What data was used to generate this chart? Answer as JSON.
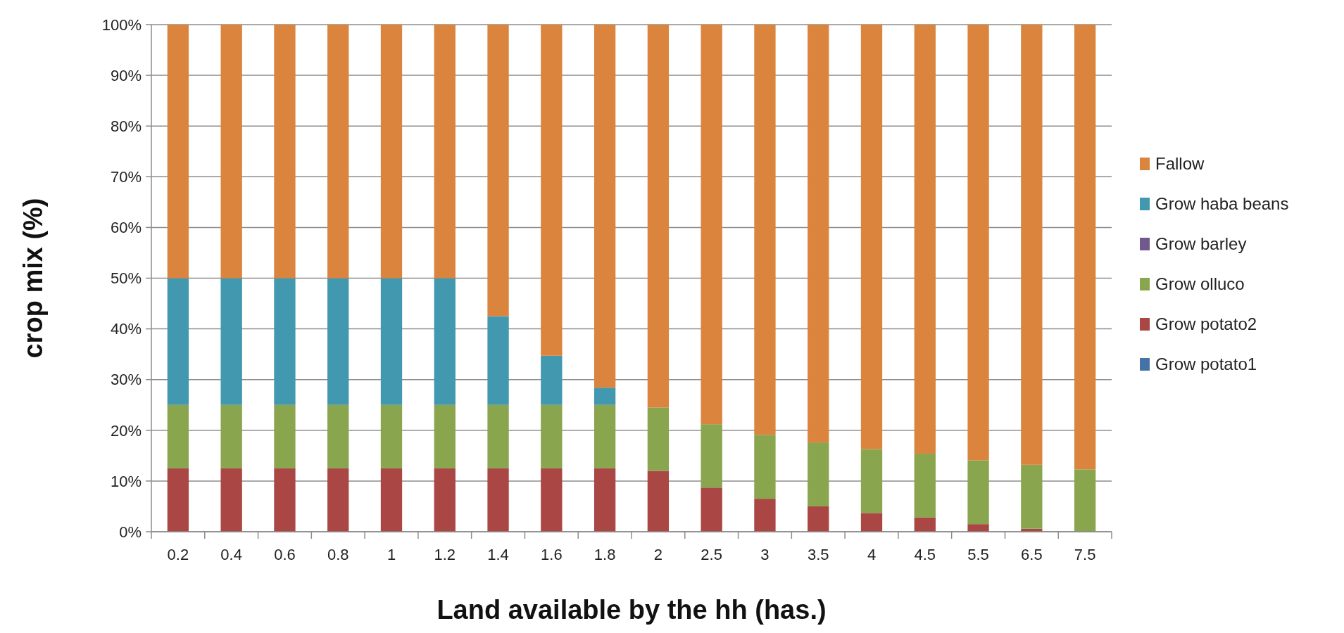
{
  "chart_data": {
    "type": "bar",
    "stacked": true,
    "xlabel": "Land available by the hh (has.)",
    "ylabel": "crop mix (%)",
    "categories": [
      "0.2",
      "0.4",
      "0.6",
      "0.8",
      "1",
      "1.2",
      "1.4",
      "1.6",
      "1.8",
      "2",
      "2.5",
      "3",
      "3.5",
      "4",
      "4.5",
      "5.5",
      "6.5",
      "7.5"
    ],
    "series": [
      {
        "name": "Grow potato1",
        "color": "#4572a7",
        "values": [
          0,
          0,
          0,
          0,
          0,
          0,
          0,
          0,
          0,
          0,
          0,
          0,
          0,
          0,
          0,
          0,
          0,
          0
        ]
      },
      {
        "name": "Grow potato2",
        "color": "#aa4643",
        "values": [
          12.5,
          12.5,
          12.5,
          12.5,
          12.5,
          12.5,
          12.5,
          12.5,
          12.5,
          12,
          8.7,
          6.5,
          5,
          3.7,
          2.8,
          1.5,
          0.6,
          0
        ]
      },
      {
        "name": "Grow olluco",
        "color": "#89a54e",
        "values": [
          12.5,
          12.5,
          12.5,
          12.5,
          12.5,
          12.5,
          12.5,
          12.5,
          12.5,
          12.5,
          12.5,
          12.6,
          12.6,
          12.6,
          12.6,
          12.6,
          12.6,
          12.3
        ]
      },
      {
        "name": "Grow barley",
        "color": "#71588f",
        "values": [
          0,
          0,
          0,
          0,
          0,
          0,
          0,
          0,
          0,
          0,
          0,
          0,
          0,
          0,
          0,
          0,
          0,
          0
        ]
      },
      {
        "name": "Grow haba beans",
        "color": "#4198af",
        "values": [
          25,
          25,
          25,
          25,
          25,
          25,
          17.5,
          9.7,
          3.4,
          0,
          0,
          0,
          0,
          0,
          0,
          0,
          0,
          0
        ]
      },
      {
        "name": "Fallow",
        "color": "#db843d",
        "values": [
          50,
          50,
          50,
          50,
          50,
          50,
          57.5,
          65.3,
          71.6,
          75.5,
          78.8,
          80.9,
          82.4,
          83.7,
          84.6,
          85.9,
          86.8,
          87.7
        ]
      }
    ],
    "ylim": [
      0,
      100
    ],
    "yticks": [
      {
        "value": 0,
        "label": "0%"
      },
      {
        "value": 10,
        "label": "10%"
      },
      {
        "value": 20,
        "label": "20%"
      },
      {
        "value": 30,
        "label": "30%"
      },
      {
        "value": 40,
        "label": "40%"
      },
      {
        "value": 50,
        "label": "50%"
      },
      {
        "value": 60,
        "label": "60%"
      },
      {
        "value": 70,
        "label": "70%"
      },
      {
        "value": 80,
        "label": "80%"
      },
      {
        "value": 90,
        "label": "90%"
      },
      {
        "value": 100,
        "label": "100%"
      }
    ],
    "grid": "y",
    "legend": "right"
  }
}
